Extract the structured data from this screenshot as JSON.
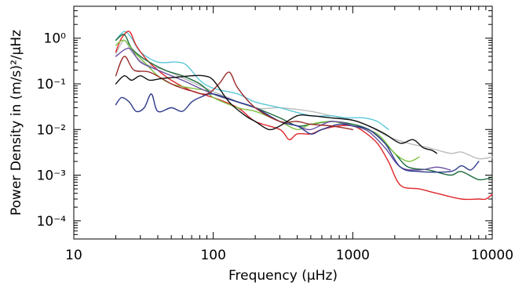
{
  "chart_data": {
    "type": "line",
    "xlabel": "Frequency (µHz)",
    "ylabel": "Power Density in (m/s)²/µHz",
    "x_scale": "log",
    "y_scale": "log",
    "xlim": [
      10,
      10000
    ],
    "ylim": [
      4e-05,
      5
    ],
    "x_ticks": [
      {
        "value": 10,
        "label": "10"
      },
      {
        "value": 100,
        "label": "100"
      },
      {
        "value": 1000,
        "label": "1000"
      },
      {
        "value": 10000,
        "label": "10000"
      }
    ],
    "y_ticks": [
      {
        "value": 1,
        "label": "10⁰"
      },
      {
        "value": 0.1,
        "label": "10⁻¹"
      },
      {
        "value": 0.01,
        "label": "10⁻²"
      },
      {
        "value": 0.001,
        "label": "10⁻³"
      },
      {
        "value": 0.0001,
        "label": "10⁻⁴"
      }
    ],
    "grid": false,
    "series": [
      {
        "color": "#bdbdbd",
        "points": [
          [
            20,
            0.45
          ],
          [
            23,
            0.9
          ],
          [
            26,
            0.5
          ],
          [
            32,
            0.28
          ],
          [
            45,
            0.2
          ],
          [
            70,
            0.11
          ],
          [
            110,
            0.06
          ],
          [
            200,
            0.03
          ],
          [
            300,
            0.03
          ],
          [
            500,
            0.025
          ],
          [
            700,
            0.02
          ],
          [
            1000,
            0.016
          ],
          [
            1300,
            0.012
          ],
          [
            1800,
            0.007
          ],
          [
            2500,
            0.005
          ],
          [
            3500,
            0.004
          ],
          [
            5000,
            0.003
          ],
          [
            6000,
            0.0032
          ],
          [
            8000,
            0.0023
          ],
          [
            10000,
            0.0025
          ]
        ]
      },
      {
        "color": "#5bc8d8",
        "points": [
          [
            20,
            0.9
          ],
          [
            23,
            1.4
          ],
          [
            26,
            1.0
          ],
          [
            30,
            0.5
          ],
          [
            40,
            0.3
          ],
          [
            55,
            0.3
          ],
          [
            65,
            0.25
          ],
          [
            80,
            0.12
          ],
          [
            100,
            0.08
          ],
          [
            150,
            0.06
          ],
          [
            200,
            0.04
          ],
          [
            300,
            0.03
          ],
          [
            500,
            0.02
          ],
          [
            700,
            0.02
          ],
          [
            900,
            0.018
          ],
          [
            1200,
            0.018
          ],
          [
            1500,
            0.015
          ],
          [
            1800,
            0.01
          ]
        ]
      },
      {
        "color": "#e0262a",
        "points": [
          [
            20,
            0.5
          ],
          [
            22,
            1.0
          ],
          [
            25,
            1.4
          ],
          [
            28,
            0.7
          ],
          [
            33,
            0.35
          ],
          [
            40,
            0.2
          ],
          [
            50,
            0.12
          ],
          [
            70,
            0.07
          ],
          [
            100,
            0.05
          ],
          [
            150,
            0.03
          ],
          [
            200,
            0.015
          ],
          [
            300,
            0.01
          ],
          [
            350,
            0.006
          ],
          [
            400,
            0.008
          ],
          [
            500,
            0.008
          ],
          [
            600,
            0.01
          ],
          [
            800,
            0.012
          ],
          [
            1000,
            0.012
          ],
          [
            1200,
            0.009
          ],
          [
            1500,
            0.005
          ],
          [
            1800,
            0.002
          ],
          [
            2200,
            0.0006
          ],
          [
            3000,
            0.0005
          ],
          [
            4000,
            0.0004
          ],
          [
            6000,
            0.0003
          ],
          [
            8000,
            0.0003
          ],
          [
            9000,
            0.0003
          ],
          [
            10000,
            0.00038
          ]
        ]
      },
      {
        "color": "#1a6b3c",
        "points": [
          [
            20,
            0.9
          ],
          [
            23,
            1.2
          ],
          [
            26,
            0.6
          ],
          [
            32,
            0.35
          ],
          [
            45,
            0.2
          ],
          [
            60,
            0.15
          ],
          [
            80,
            0.1
          ],
          [
            100,
            0.06
          ],
          [
            150,
            0.04
          ],
          [
            200,
            0.03
          ],
          [
            300,
            0.018
          ],
          [
            400,
            0.012
          ],
          [
            500,
            0.013
          ],
          [
            700,
            0.015
          ],
          [
            1000,
            0.013
          ],
          [
            1300,
            0.01
          ],
          [
            1600,
            0.006
          ],
          [
            2000,
            0.003
          ],
          [
            2500,
            0.0015
          ],
          [
            3500,
            0.0013
          ],
          [
            5000,
            0.001
          ],
          [
            6000,
            0.0012
          ],
          [
            8000,
            0.0008
          ],
          [
            10000,
            0.0009
          ]
        ]
      },
      {
        "color": "#7ec242",
        "points": [
          [
            20,
            0.7
          ],
          [
            23,
            0.9
          ],
          [
            27,
            0.5
          ],
          [
            32,
            0.3
          ],
          [
            40,
            0.15
          ],
          [
            50,
            0.1
          ],
          [
            70,
            0.08
          ],
          [
            90,
            0.07
          ],
          [
            100,
            0.05
          ],
          [
            150,
            0.03
          ],
          [
            200,
            0.025
          ],
          [
            300,
            0.015
          ],
          [
            400,
            0.01
          ],
          [
            500,
            0.013
          ],
          [
            700,
            0.015
          ],
          [
            1000,
            0.012
          ],
          [
            1500,
            0.008
          ],
          [
            2000,
            0.003
          ],
          [
            2500,
            0.002
          ],
          [
            3000,
            0.0025
          ]
        ]
      },
      {
        "color": "#6a4fa3",
        "points": [
          [
            20,
            0.4
          ],
          [
            25,
            0.6
          ],
          [
            30,
            0.3
          ],
          [
            40,
            0.2
          ],
          [
            60,
            0.12
          ],
          [
            80,
            0.08
          ],
          [
            100,
            0.06
          ],
          [
            150,
            0.04
          ],
          [
            200,
            0.03
          ],
          [
            300,
            0.015
          ],
          [
            400,
            0.012
          ],
          [
            500,
            0.01
          ],
          [
            700,
            0.015
          ],
          [
            1000,
            0.012
          ],
          [
            1300,
            0.009
          ],
          [
            1700,
            0.004
          ],
          [
            2200,
            0.0015
          ],
          [
            3000,
            0.0013
          ],
          [
            4000,
            0.0015
          ],
          [
            5000,
            0.0013
          ]
        ]
      },
      {
        "color": "#2e3a8c",
        "points": [
          [
            20,
            0.035
          ],
          [
            22,
            0.05
          ],
          [
            25,
            0.04
          ],
          [
            28,
            0.025
          ],
          [
            32,
            0.03
          ],
          [
            36,
            0.06
          ],
          [
            40,
            0.025
          ],
          [
            50,
            0.03
          ],
          [
            60,
            0.025
          ],
          [
            70,
            0.04
          ],
          [
            80,
            0.05
          ],
          [
            100,
            0.06
          ],
          [
            150,
            0.04
          ],
          [
            200,
            0.03
          ],
          [
            300,
            0.015
          ],
          [
            400,
            0.012
          ],
          [
            500,
            0.008
          ],
          [
            600,
            0.01
          ],
          [
            800,
            0.013
          ],
          [
            1000,
            0.012
          ],
          [
            1300,
            0.01
          ],
          [
            1700,
            0.005
          ],
          [
            2200,
            0.0015
          ],
          [
            3000,
            0.0012
          ],
          [
            5000,
            0.0012
          ],
          [
            6000,
            0.0016
          ],
          [
            7000,
            0.0013
          ],
          [
            8000,
            0.002
          ]
        ]
      },
      {
        "color": "#9c2a2a",
        "points": [
          [
            20,
            0.15
          ],
          [
            23,
            0.4
          ],
          [
            27,
            0.2
          ],
          [
            35,
            0.18
          ],
          [
            50,
            0.1
          ],
          [
            60,
            0.08
          ],
          [
            70,
            0.07
          ],
          [
            90,
            0.06
          ],
          [
            110,
            0.1
          ],
          [
            130,
            0.18
          ],
          [
            150,
            0.08
          ],
          [
            200,
            0.03
          ],
          [
            300,
            0.015
          ],
          [
            400,
            0.015
          ],
          [
            500,
            0.013
          ],
          [
            700,
            0.012
          ],
          [
            1000,
            0.01
          ]
        ]
      },
      {
        "color": "#111111",
        "points": [
          [
            20,
            0.1
          ],
          [
            23,
            0.15
          ],
          [
            26,
            0.12
          ],
          [
            30,
            0.15
          ],
          [
            35,
            0.12
          ],
          [
            42,
            0.13
          ],
          [
            55,
            0.14
          ],
          [
            70,
            0.15
          ],
          [
            85,
            0.15
          ],
          [
            100,
            0.12
          ],
          [
            130,
            0.04
          ],
          [
            170,
            0.02
          ],
          [
            200,
            0.015
          ],
          [
            250,
            0.01
          ],
          [
            300,
            0.012
          ],
          [
            400,
            0.02
          ],
          [
            500,
            0.02
          ],
          [
            700,
            0.018
          ],
          [
            1000,
            0.016
          ],
          [
            1300,
            0.012
          ],
          [
            1700,
            0.008
          ],
          [
            2200,
            0.005
          ],
          [
            2700,
            0.006
          ],
          [
            3200,
            0.004
          ],
          [
            3700,
            0.0035
          ],
          [
            4000,
            0.003
          ]
        ]
      }
    ]
  }
}
